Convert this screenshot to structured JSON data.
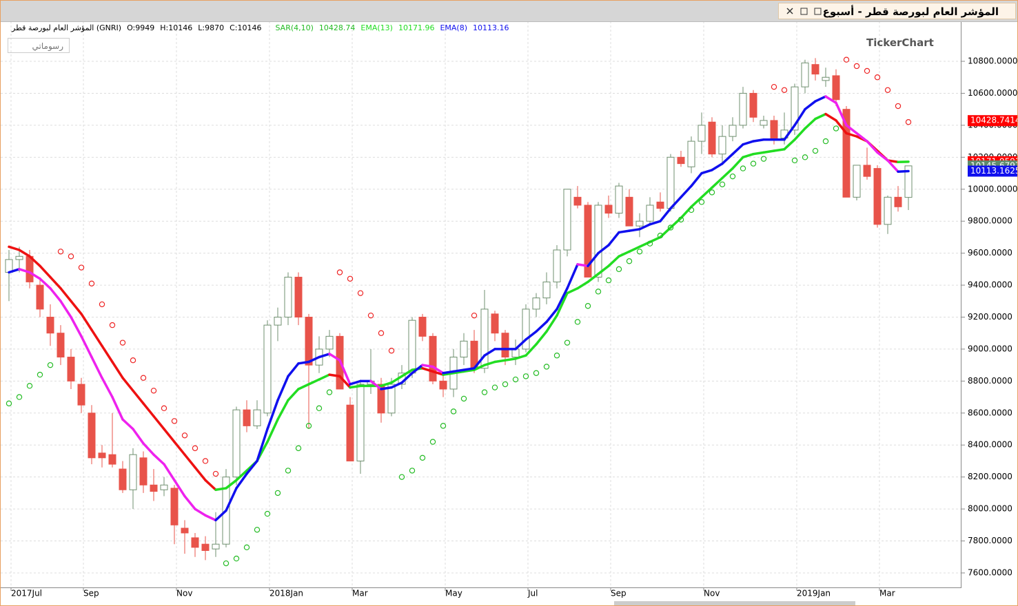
{
  "title": "المؤشر العام لبورصة قطر - أسبوع",
  "info": {
    "symbol": "المؤشر العام لبورصة قطر (GNRI)",
    "open": "O:9949",
    "high": "H:10146",
    "low": "L:9870",
    "close": "C:10146",
    "sar_name": "SAR(4,10)",
    "sar_value": "10428.74",
    "ema13_name": "EMA(13)",
    "ema13_value": "10171.96",
    "ema8_name": "EMA(8)",
    "ema8_value": "10113.16"
  },
  "button": "رسوماتي",
  "logo": "TickerChart",
  "chart_data": {
    "type": "candlestick",
    "categories": [
      "2017Jul",
      null,
      null,
      null,
      null,
      null,
      null,
      "Sep",
      null,
      null,
      null,
      null,
      null,
      null,
      null,
      null,
      "Nov",
      null,
      null,
      null,
      null,
      null,
      null,
      null,
      null,
      "2018Jan",
      null,
      null,
      null,
      null,
      null,
      null,
      null,
      "Mar",
      null,
      null,
      null,
      null,
      null,
      null,
      null,
      null,
      "May",
      null,
      null,
      null,
      null,
      null,
      null,
      null,
      "Jul",
      null,
      null,
      null,
      null,
      null,
      null,
      null,
      "Sep",
      null,
      null,
      null,
      null,
      null,
      null,
      null,
      null,
      "Nov",
      null,
      null,
      null,
      null,
      null,
      null,
      null,
      null,
      "2019Jan",
      null,
      null,
      null,
      null,
      null,
      null,
      null,
      "Mar",
      null,
      null,
      null
    ],
    "open": [
      9480,
      9560,
      9580,
      9400,
      9200,
      9100,
      8950,
      8780,
      8600,
      8350,
      8340,
      8250,
      8120,
      8320,
      8150,
      8120,
      8130,
      7880,
      7820,
      7780,
      7750,
      7780,
      8200,
      8620,
      8520,
      8600,
      9150,
      9200,
      9450,
      9200,
      8900,
      9000,
      9080,
      8650,
      8300,
      8780,
      8780,
      8600,
      8780,
      8850,
      9200,
      9080,
      8800,
      8750,
      8950,
      9050,
      8880,
      9220,
      9100,
      8950,
      9000,
      9250,
      9320,
      9420,
      9620,
      9950,
      9900,
      9450,
      9900,
      9850,
      9950,
      9770,
      9800,
      9920,
      9880,
      10200,
      10140,
      10300,
      10420,
      10220,
      10330,
      10400,
      10600,
      10400,
      10430,
      10320,
      10370,
      10640,
      10780,
      10680,
      10710,
      10500,
      9950,
      10150,
      10130,
      9780,
      9950,
      9949
    ],
    "high": [
      9620,
      9640,
      9620,
      9450,
      9280,
      9150,
      9000,
      8820,
      8650,
      8400,
      8600,
      8300,
      8380,
      8360,
      8250,
      8200,
      8150,
      7930,
      7850,
      7830,
      7980,
      8250,
      8640,
      8680,
      8680,
      9180,
      9260,
      9480,
      9480,
      9220,
      9080,
      9120,
      9100,
      8700,
      8800,
      9000,
      8820,
      8820,
      8900,
      9200,
      9220,
      9100,
      8850,
      9000,
      9100,
      9120,
      9370,
      9240,
      9120,
      9060,
      9280,
      9350,
      9480,
      9650,
      10000,
      10020,
      9920,
      9920,
      9960,
      10040,
      10000,
      9850,
      9950,
      9980,
      10220,
      10240,
      10330,
      10480,
      10450,
      10400,
      10450,
      10640,
      10620,
      10460,
      10460,
      10480,
      10660,
      10810,
      10820,
      10760,
      10750,
      10520,
      10150,
      10260,
      10150,
      9960,
      10020,
      10146
    ],
    "low": [
      9300,
      9480,
      9380,
      9200,
      9020,
      8900,
      8750,
      8600,
      8280,
      8260,
      8260,
      8100,
      8000,
      8100,
      8050,
      8080,
      7780,
      7720,
      7700,
      7680,
      7700,
      7760,
      8150,
      8480,
      8500,
      8580,
      9050,
      9150,
      9150,
      8500,
      8850,
      8950,
      8750,
      8300,
      8220,
      8720,
      8540,
      8580,
      8750,
      8820,
      9050,
      8780,
      8700,
      8700,
      8900,
      8850,
      8850,
      9050,
      8900,
      8900,
      8980,
      9200,
      9280,
      9380,
      9580,
      9880,
      9450,
      9420,
      9820,
      9820,
      9770,
      9700,
      9780,
      9860,
      9860,
      10140,
      10100,
      10220,
      10200,
      10150,
      10300,
      10380,
      10420,
      10380,
      10280,
      10280,
      10340,
      10600,
      10680,
      10640,
      10520,
      9950,
      9930,
      10060,
      9760,
      9720,
      9860,
      9870
    ],
    "close": [
      9560,
      9580,
      9420,
      9250,
      9100,
      8950,
      8800,
      8650,
      8320,
      8320,
      8280,
      8120,
      8340,
      8150,
      8110,
      8150,
      7900,
      7850,
      7760,
      7740,
      7780,
      8200,
      8620,
      8520,
      8620,
      9150,
      9200,
      9450,
      9200,
      8900,
      9000,
      9080,
      8750,
      8300,
      8780,
      8800,
      8600,
      8780,
      8850,
      9180,
      9080,
      8800,
      8750,
      8950,
      9050,
      8880,
      9250,
      9100,
      8950,
      9000,
      9250,
      9320,
      9420,
      9620,
      10000,
      9900,
      9450,
      9900,
      9850,
      10020,
      9770,
      9800,
      9900,
      9880,
      10200,
      10160,
      10300,
      10400,
      10220,
      10330,
      10400,
      10600,
      10450,
      10430,
      10320,
      10370,
      10640,
      10790,
      10720,
      10700,
      10560,
      9950,
      10150,
      10080,
      9780,
      9950,
      9890,
      10146
    ],
    "down_color": "#e8534a",
    "up_stroke": "#6f8f6f",
    "ema13": {
      "values": [
        9640,
        9620,
        9580,
        9520,
        9450,
        9380,
        9300,
        9220,
        9120,
        9020,
        8920,
        8820,
        8740,
        8660,
        8580,
        8500,
        8420,
        8340,
        8260,
        8180,
        8120,
        8130,
        8180,
        8240,
        8300,
        8420,
        8560,
        8680,
        8750,
        8780,
        8810,
        8840,
        8830,
        8760,
        8770,
        8770,
        8770,
        8790,
        8830,
        8870,
        8880,
        8860,
        8840,
        8850,
        8860,
        8870,
        8900,
        8920,
        8930,
        8940,
        8960,
        9030,
        9110,
        9210,
        9350,
        9380,
        9420,
        9470,
        9520,
        9580,
        9610,
        9640,
        9670,
        9700,
        9760,
        9820,
        9890,
        9950,
        10010,
        10070,
        10130,
        10200,
        10220,
        10230,
        10240,
        10250,
        10310,
        10380,
        10440,
        10470,
        10430,
        10350,
        10330,
        10300,
        10240,
        10180,
        10170,
        10172
      ],
      "up_color": "#22dd22",
      "down_color": "#ee1111"
    },
    "ema8": {
      "values": [
        9480,
        9500,
        9480,
        9440,
        9380,
        9300,
        9200,
        9080,
        8950,
        8820,
        8700,
        8560,
        8500,
        8410,
        8340,
        8280,
        8180,
        8080,
        8000,
        7960,
        7930,
        7990,
        8130,
        8220,
        8300,
        8500,
        8680,
        8830,
        8910,
        8920,
        8950,
        8970,
        8930,
        8780,
        8800,
        8800,
        8750,
        8760,
        8790,
        8850,
        8900,
        8890,
        8850,
        8860,
        8870,
        8880,
        8960,
        9000,
        9000,
        9000,
        9060,
        9110,
        9170,
        9250,
        9380,
        9530,
        9520,
        9600,
        9650,
        9730,
        9740,
        9750,
        9780,
        9800,
        9880,
        9950,
        10020,
        10100,
        10120,
        10160,
        10220,
        10280,
        10300,
        10310,
        10310,
        10310,
        10400,
        10500,
        10550,
        10580,
        10540,
        10400,
        10350,
        10300,
        10230,
        10180,
        10110,
        10113
      ],
      "up_color": "#1010ee",
      "down_color": "#ee22ee"
    },
    "sar": {
      "values": [
        8660,
        8700,
        8770,
        8840,
        8900,
        9610,
        9580,
        9510,
        9410,
        9280,
        9150,
        9040,
        8930,
        8820,
        8740,
        8630,
        8550,
        8460,
        8380,
        8300,
        8220,
        7660,
        7690,
        7760,
        7870,
        7970,
        8100,
        8240,
        8380,
        8520,
        8630,
        8730,
        9480,
        9440,
        9350,
        9210,
        9100,
        8990,
        8200,
        8240,
        8320,
        8420,
        8520,
        8610,
        8690,
        9210,
        8730,
        8760,
        8780,
        8810,
        8830,
        8850,
        8890,
        8960,
        9040,
        9170,
        9270,
        9360,
        9430,
        9500,
        9550,
        9610,
        9660,
        9710,
        9760,
        9810,
        9870,
        9920,
        9980,
        10030,
        10080,
        10130,
        10160,
        10190,
        10640,
        10620,
        10180,
        10200,
        10240,
        10300,
        10380,
        10810,
        10770,
        10740,
        10700,
        10620,
        10520,
        10420
      ],
      "up_color": "#22bb22",
      "down_color": "#ee2222"
    },
    "last_values": [
      {
        "value": 10428.7414,
        "color": "#ff0000"
      },
      {
        "value": 10171.9593,
        "color": "#ff0000"
      },
      {
        "value": 10145.6797,
        "color": "#5f8a6a"
      },
      {
        "value": 10113.1625,
        "color": "#1010ee"
      }
    ],
    "ylim": [
      7500,
      10900
    ],
    "yticks": [
      {
        "value": 7600,
        "label": "7600.0000"
      },
      {
        "value": 7800,
        "label": "7800.0000"
      },
      {
        "value": 8000,
        "label": "8000.0000"
      },
      {
        "value": 8200,
        "label": "8200.0000"
      },
      {
        "value": 8400,
        "label": "8400.0000"
      },
      {
        "value": 8600,
        "label": "8600.0000"
      },
      {
        "value": 8800,
        "label": "8800.0000"
      },
      {
        "value": 9000,
        "label": "9000.0000"
      },
      {
        "value": 9200,
        "label": "9200.0000"
      },
      {
        "value": 9400,
        "label": "9400.0000"
      },
      {
        "value": 9600,
        "label": "9600.0000"
      },
      {
        "value": 9800,
        "label": "9800.0000"
      },
      {
        "value": 10000,
        "label": "10000.0000"
      },
      {
        "value": 10200,
        "label": "10200.0000"
      },
      {
        "value": 10400,
        "label": "10400.0000"
      },
      {
        "value": 10600,
        "label": "10600.0000"
      },
      {
        "value": 10800,
        "label": "10800.0000"
      }
    ],
    "grid": true
  }
}
